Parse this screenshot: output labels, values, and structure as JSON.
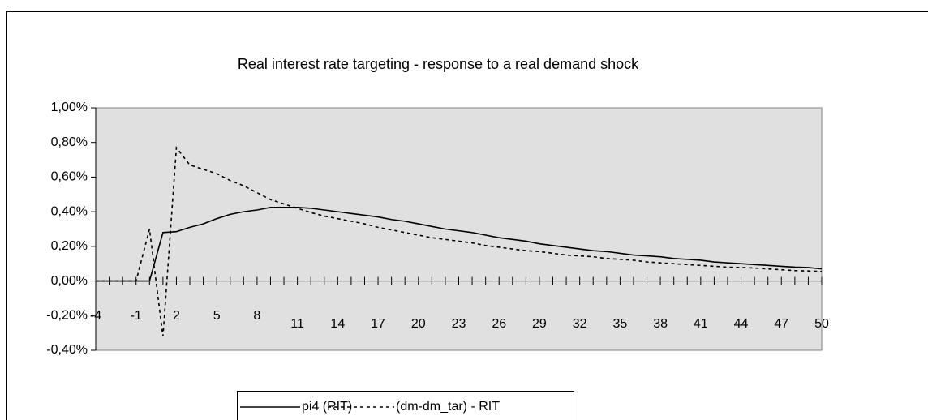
{
  "chart_data": {
    "type": "line",
    "title": "Real interest rate targeting - response to a real demand shock",
    "x": [
      -4,
      -3,
      -2,
      -1,
      0,
      1,
      2,
      3,
      4,
      5,
      6,
      7,
      8,
      9,
      10,
      11,
      12,
      13,
      14,
      15,
      16,
      17,
      18,
      19,
      20,
      21,
      22,
      23,
      24,
      25,
      26,
      27,
      28,
      29,
      30,
      31,
      32,
      33,
      34,
      35,
      36,
      37,
      38,
      39,
      40,
      41,
      42,
      43,
      44,
      45,
      46,
      47,
      48,
      49,
      50
    ],
    "series": [
      {
        "name": "pi4 (RIT)",
        "color": "#000000",
        "dash": "solid",
        "values": [
          0,
          0,
          0,
          0,
          0,
          0.28,
          0.285,
          0.31,
          0.33,
          0.36,
          0.385,
          0.4,
          0.41,
          0.425,
          0.425,
          0.425,
          0.42,
          0.41,
          0.4,
          0.39,
          0.38,
          0.37,
          0.355,
          0.345,
          0.33,
          0.315,
          0.3,
          0.29,
          0.28,
          0.265,
          0.25,
          0.24,
          0.23,
          0.215,
          0.205,
          0.195,
          0.185,
          0.175,
          0.17,
          0.16,
          0.15,
          0.145,
          0.14,
          0.13,
          0.125,
          0.12,
          0.11,
          0.105,
          0.1,
          0.095,
          0.09,
          0.085,
          0.08,
          0.078,
          0.07
        ]
      },
      {
        "name": "(dm-dm_tar) - RIT",
        "color": "#000000",
        "dash": "dashed",
        "values": [
          0,
          0,
          0,
          0,
          0.3,
          -0.32,
          0.77,
          0.67,
          0.645,
          0.62,
          0.58,
          0.55,
          0.51,
          0.47,
          0.445,
          0.42,
          0.395,
          0.375,
          0.36,
          0.345,
          0.33,
          0.31,
          0.295,
          0.28,
          0.265,
          0.25,
          0.24,
          0.23,
          0.22,
          0.205,
          0.195,
          0.185,
          0.175,
          0.17,
          0.16,
          0.15,
          0.145,
          0.14,
          0.13,
          0.125,
          0.12,
          0.11,
          0.105,
          0.1,
          0.095,
          0.09,
          0.085,
          0.08,
          0.078,
          0.075,
          0.07,
          0.065,
          0.06,
          0.058,
          0.055
        ]
      }
    ],
    "xlim": [
      -4,
      50
    ],
    "xticks": [
      -4,
      -1,
      2,
      5,
      8,
      11,
      14,
      17,
      20,
      23,
      26,
      29,
      32,
      35,
      38,
      41,
      44,
      47,
      50
    ],
    "ylim": [
      -0.4,
      1
    ],
    "yticks": [
      {
        "value": -0.4,
        "label": "-0,40%"
      },
      {
        "value": -0.2,
        "label": "-0,20%"
      },
      {
        "value": 0,
        "label": "0,00%"
      },
      {
        "value": 0.2,
        "label": "0,20%"
      },
      {
        "value": 0.4,
        "label": "0,40%"
      },
      {
        "value": 0.6,
        "label": "0,60%"
      },
      {
        "value": 0.8,
        "label": "0,80%"
      },
      {
        "value": 1,
        "label": "1,00%"
      }
    ],
    "grid": false,
    "legend": "bottom"
  }
}
